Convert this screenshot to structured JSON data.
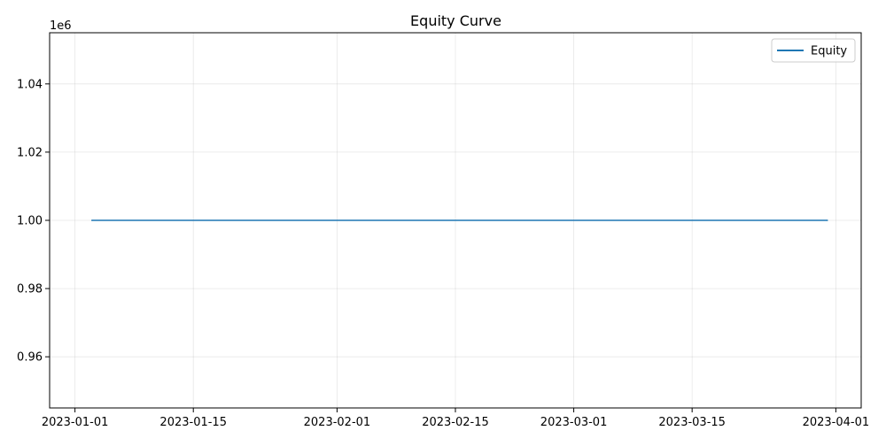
{
  "chart_data": {
    "type": "line",
    "title": "Equity Curve",
    "xlabel": "",
    "ylabel": "",
    "y_offset_label": "1e6",
    "y_multiplier": 1000000,
    "x_axis_type": "date",
    "xlim": [
      "2022-12-29",
      "2023-04-04"
    ],
    "ylim": [
      945000,
      1055000
    ],
    "x_ticks": [
      "2023-01-01",
      "2023-01-15",
      "2023-02-01",
      "2023-02-15",
      "2023-03-01",
      "2023-03-15",
      "2023-04-01"
    ],
    "y_ticks": [
      960000,
      980000,
      1000000,
      1020000,
      1040000
    ],
    "y_tick_labels": [
      "0.96",
      "0.98",
      "1.00",
      "1.02",
      "1.04"
    ],
    "grid": true,
    "legend_position": "top-right",
    "series": [
      {
        "name": "Equity",
        "color": "#1f77b4",
        "x": [
          "2023-01-03",
          "2023-03-31"
        ],
        "y": [
          1000000,
          1000000
        ]
      }
    ]
  }
}
